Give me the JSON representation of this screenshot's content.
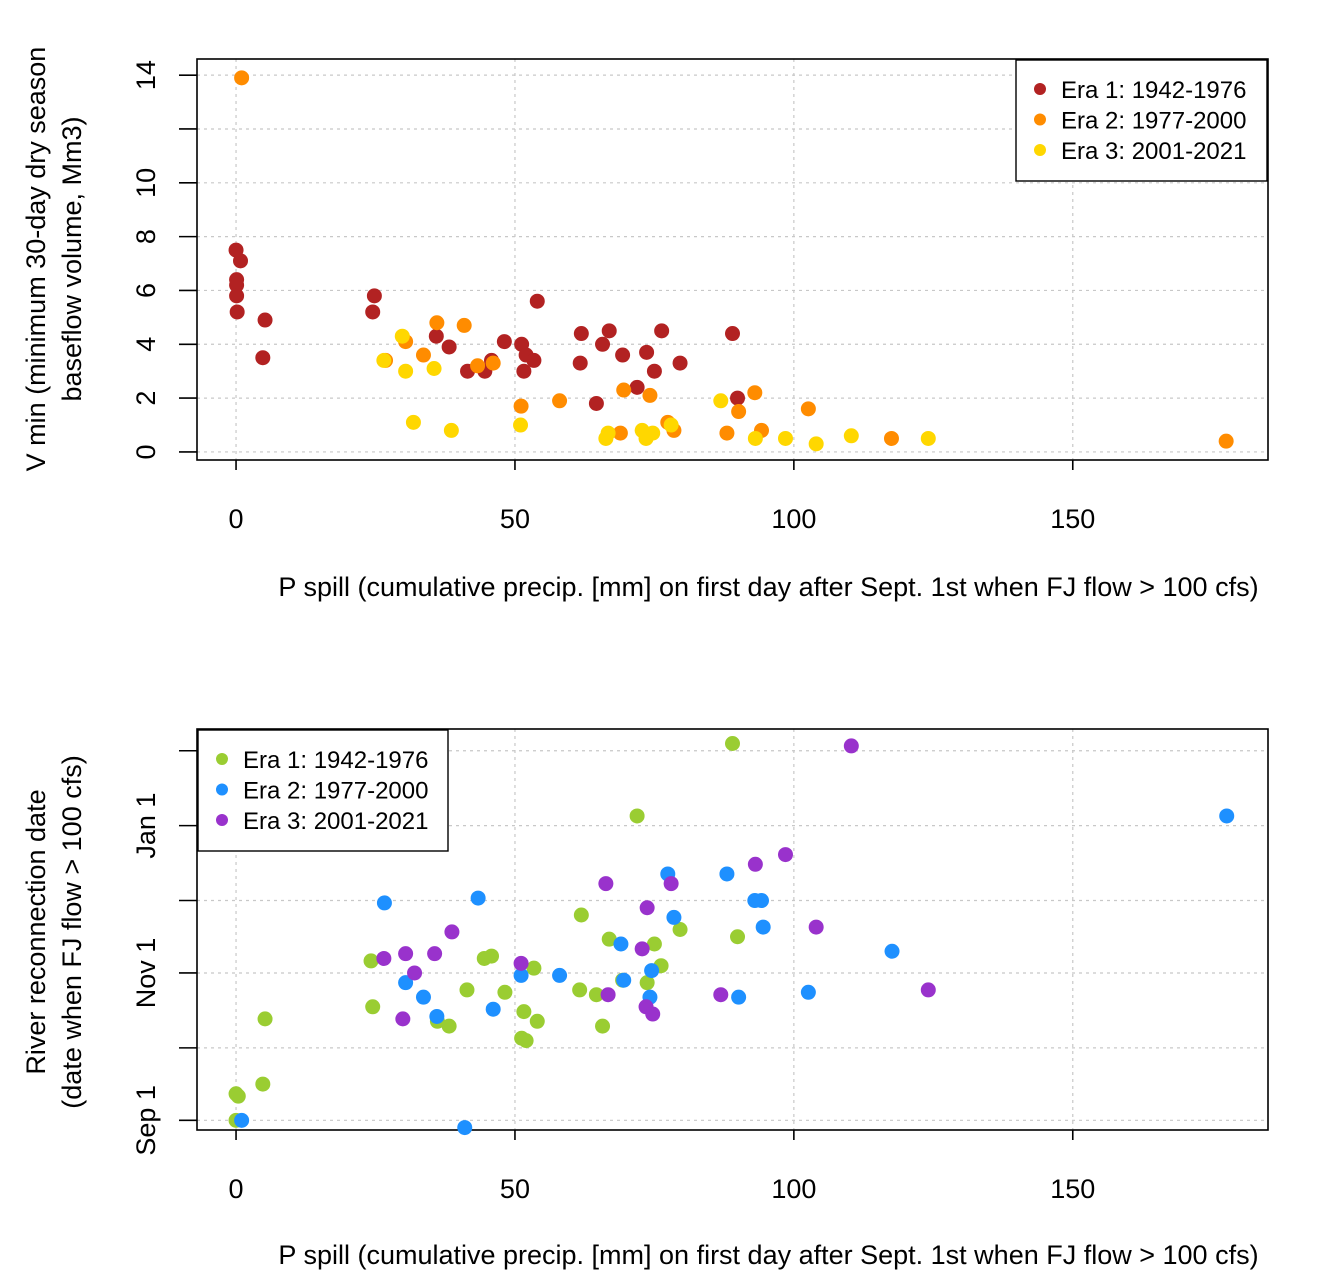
{
  "chart_data": [
    {
      "type": "scatter",
      "xlabel": "P spill (cumulative precip. [mm] on first day after Sept. 1st when FJ flow > 100 cfs)",
      "ylabel_lines": [
        "V min (minimum 30-day dry season",
        "baseflow volume, Mm3)"
      ],
      "xlim": [
        -7,
        185
      ],
      "ylim": [
        -0.3,
        14.6
      ],
      "x_ticks": [
        0,
        50,
        100,
        150
      ],
      "y_ticks": [
        0,
        2,
        4,
        6,
        8,
        10,
        12,
        14
      ],
      "y_tick_labels": [
        "0",
        "2",
        "4",
        "6",
        "8",
        "10",
        "",
        "14"
      ],
      "grid": true,
      "legend_position": "top-right",
      "series": [
        {
          "name": "Era 1: 1942-1976",
          "color": "#b22222",
          "points": [
            [
              0,
              7.5
            ],
            [
              0.1,
              6.4
            ],
            [
              0.1,
              6.2
            ],
            [
              0.1,
              5.8
            ],
            [
              0.2,
              5.2
            ],
            [
              0.8,
              7.1
            ],
            [
              4.8,
              3.5
            ],
            [
              5.2,
              4.9
            ],
            [
              24.5,
              5.2
            ],
            [
              24.8,
              5.8
            ],
            [
              35.9,
              4.3
            ],
            [
              38.2,
              3.9
            ],
            [
              41.5,
              3.0
            ],
            [
              44.6,
              3.0
            ],
            [
              45.8,
              3.4
            ],
            [
              48.1,
              4.1
            ],
            [
              51.2,
              4.0
            ],
            [
              51.6,
              3.0
            ],
            [
              52.0,
              3.6
            ],
            [
              53.4,
              3.4
            ],
            [
              54.0,
              5.6
            ],
            [
              61.7,
              3.3
            ],
            [
              61.9,
              4.4
            ],
            [
              64.6,
              1.8
            ],
            [
              65.7,
              4.0
            ],
            [
              66.9,
              4.5
            ],
            [
              69.3,
              3.6
            ],
            [
              71.9,
              2.4
            ],
            [
              73.6,
              3.7
            ],
            [
              75.0,
              3.0
            ],
            [
              76.3,
              4.5
            ],
            [
              79.6,
              3.3
            ],
            [
              89.0,
              4.4
            ],
            [
              89.9,
              2.0
            ]
          ]
        },
        {
          "name": "Era 2: 1977-2000",
          "color": "#ff8c00",
          "points": [
            [
              1.0,
              13.9
            ],
            [
              26.8,
              3.4
            ],
            [
              30.4,
              4.1
            ],
            [
              33.6,
              3.6
            ],
            [
              36.0,
              4.8
            ],
            [
              40.9,
              4.7
            ],
            [
              43.3,
              3.2
            ],
            [
              46.1,
              3.3
            ],
            [
              51.1,
              1.7
            ],
            [
              58.0,
              1.9
            ],
            [
              68.9,
              0.7
            ],
            [
              69.5,
              2.3
            ],
            [
              74.2,
              2.1
            ],
            [
              77.4,
              1.1
            ],
            [
              78.5,
              0.8
            ],
            [
              88.0,
              0.7
            ],
            [
              90.1,
              1.5
            ],
            [
              93.0,
              2.2
            ],
            [
              94.2,
              0.8
            ],
            [
              102.6,
              1.6
            ],
            [
              117.5,
              0.5
            ],
            [
              177.5,
              0.4
            ]
          ]
        },
        {
          "name": "Era 3: 2001-2021",
          "color": "#ffd700",
          "points": [
            [
              26.5,
              3.4
            ],
            [
              29.8,
              4.3
            ],
            [
              30.4,
              3.0
            ],
            [
              31.8,
              1.1
            ],
            [
              35.5,
              3.1
            ],
            [
              38.6,
              0.8
            ],
            [
              51.0,
              1.0
            ],
            [
              66.3,
              0.5
            ],
            [
              66.7,
              0.7
            ],
            [
              72.8,
              0.8
            ],
            [
              73.5,
              0.5
            ],
            [
              74.7,
              0.7
            ],
            [
              78.0,
              1.0
            ],
            [
              86.9,
              1.9
            ],
            [
              93.1,
              0.5
            ],
            [
              98.5,
              0.5
            ],
            [
              104.0,
              0.3
            ],
            [
              110.3,
              0.6
            ],
            [
              124.1,
              0.5
            ]
          ]
        }
      ]
    },
    {
      "type": "scatter",
      "xlabel": "P spill (cumulative precip. [mm] on first day after Sept. 1st when FJ flow > 100 cfs)",
      "ylabel_lines": [
        "River reconnection date",
        "(date when FJ flow > 100 cfs)"
      ],
      "x_unit": "mm",
      "y_unit": "date",
      "xlim": [
        -7,
        185
      ],
      "ylim": [
        "Aug 28",
        "Feb 10"
      ],
      "x_ticks": [
        0,
        50,
        100,
        150
      ],
      "y_ticks": [
        "Sep 1",
        "Oct 1",
        "Nov 1",
        "Dec 1",
        "Jan 1",
        "Feb 1"
      ],
      "y_tick_labels": [
        "Sep 1",
        "",
        "Nov 1",
        "",
        "Jan 1",
        ""
      ],
      "grid": true,
      "legend_position": "top-left",
      "series": [
        {
          "name": "Era 1: 1942-1976",
          "color": "#9acd32",
          "points": [
            [
              0.0,
              "Sep 1"
            ],
            [
              0.0,
              "Sep 12"
            ],
            [
              0.4,
              "Sep 11"
            ],
            [
              4.8,
              "Sep 16"
            ],
            [
              5.2,
              "Oct 13"
            ],
            [
              24.2,
              "Nov 6"
            ],
            [
              24.5,
              "Oct 18"
            ],
            [
              36.1,
              "Oct 12"
            ],
            [
              38.2,
              "Oct 10"
            ],
            [
              41.4,
              "Oct 25"
            ],
            [
              44.5,
              "Nov 7"
            ],
            [
              45.8,
              "Nov 8"
            ],
            [
              48.2,
              "Oct 24"
            ],
            [
              51.2,
              "Oct 5"
            ],
            [
              51.6,
              "Oct 16"
            ],
            [
              52.0,
              "Oct 4"
            ],
            [
              53.4,
              "Nov 3"
            ],
            [
              54.0,
              "Oct 12"
            ],
            [
              61.6,
              "Oct 25"
            ],
            [
              61.9,
              "Nov 25"
            ],
            [
              64.6,
              "Oct 23"
            ],
            [
              65.7,
              "Oct 10"
            ],
            [
              66.9,
              "Nov 15"
            ],
            [
              69.3,
              "Oct 29"
            ],
            [
              71.9,
              "Jan 5"
            ],
            [
              73.7,
              "Oct 28"
            ],
            [
              75.0,
              "Nov 13"
            ],
            [
              76.2,
              "Nov 4"
            ],
            [
              79.6,
              "Nov 19"
            ],
            [
              89.0,
              "Feb 4"
            ],
            [
              89.9,
              "Nov 16"
            ]
          ]
        },
        {
          "name": "Era 2: 1977-2000",
          "color": "#1e90ff",
          "points": [
            [
              1.0,
              "Sep 1"
            ],
            [
              26.6,
              "Nov 30"
            ],
            [
              30.4,
              "Oct 28"
            ],
            [
              33.6,
              "Oct 22"
            ],
            [
              36.0,
              "Oct 14"
            ],
            [
              41.0,
              "Aug 29"
            ],
            [
              43.4,
              "Dec 2"
            ],
            [
              46.1,
              "Oct 17"
            ],
            [
              51.1,
              "Oct 31"
            ],
            [
              58.0,
              "Oct 31"
            ],
            [
              69.0,
              "Nov 13"
            ],
            [
              69.5,
              "Oct 29"
            ],
            [
              74.2,
              "Oct 22"
            ],
            [
              74.5,
              "Nov 2"
            ],
            [
              77.4,
              "Dec 12"
            ],
            [
              78.5,
              "Nov 24"
            ],
            [
              88.0,
              "Dec 12"
            ],
            [
              90.1,
              "Oct 22"
            ],
            [
              93.0,
              "Dec 1"
            ],
            [
              94.2,
              "Dec 1"
            ],
            [
              94.5,
              "Nov 20"
            ],
            [
              102.6,
              "Oct 24"
            ],
            [
              117.6,
              "Nov 10"
            ],
            [
              177.6,
              "Jan 5"
            ]
          ]
        },
        {
          "name": "Era 3: 2001-2021",
          "color": "#9932cc",
          "points": [
            [
              26.5,
              "Nov 7"
            ],
            [
              29.9,
              "Oct 13"
            ],
            [
              30.4,
              "Nov 9"
            ],
            [
              32.0,
              "Nov 1"
            ],
            [
              35.6,
              "Nov 9"
            ],
            [
              38.7,
              "Nov 18"
            ],
            [
              51.1,
              "Nov 5"
            ],
            [
              66.3,
              "Dec 8"
            ],
            [
              66.7,
              "Oct 23"
            ],
            [
              72.8,
              "Nov 11"
            ],
            [
              73.5,
              "Oct 18"
            ],
            [
              73.7,
              "Nov 28"
            ],
            [
              74.7,
              "Oct 15"
            ],
            [
              78.0,
              "Dec 8"
            ],
            [
              86.9,
              "Oct 23"
            ],
            [
              93.1,
              "Dec 16"
            ],
            [
              98.5,
              "Dec 20"
            ],
            [
              104.0,
              "Nov 20"
            ],
            [
              110.3,
              "Feb 3"
            ],
            [
              124.1,
              "Oct 25"
            ]
          ]
        }
      ]
    }
  ]
}
